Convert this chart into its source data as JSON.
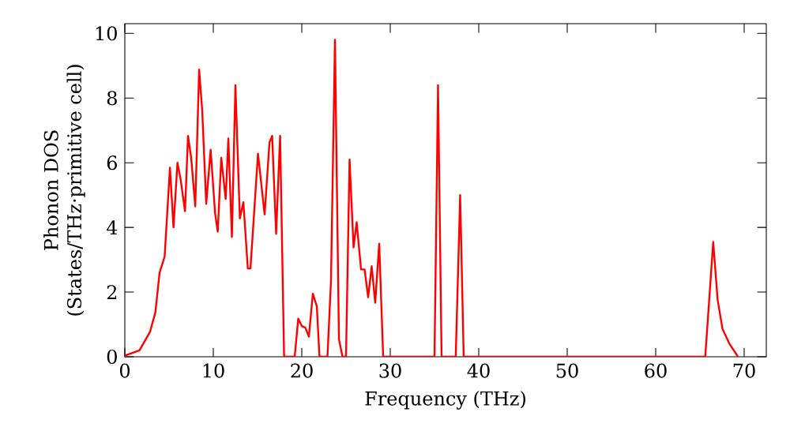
{
  "chart_data": {
    "type": "line",
    "xlabel": "Frequency (THz)",
    "ylabel": "Phonon DOS\n(States/THz·primitive cell)",
    "xlim": [
      0,
      72.5
    ],
    "ylim": [
      0,
      10.3
    ],
    "xticks": [
      0,
      10,
      20,
      30,
      40,
      50,
      60,
      70
    ],
    "yticks": [
      0,
      2,
      4,
      6,
      8,
      10
    ],
    "marker": "none",
    "line_style": "solid",
    "series": [
      {
        "color": "#ff0000",
        "x": [
          0,
          0.18,
          1.66,
          2.86,
          3.45,
          3.93,
          4.5,
          5.1,
          5.5,
          5.95,
          6.3,
          6.8,
          7.14,
          7.5,
          7.96,
          8.4,
          8.75,
          9.2,
          9.7,
          10.2,
          10.5,
          10.9,
          11.4,
          11.7,
          12.1,
          12.5,
          13.0,
          13.4,
          13.9,
          14.2,
          15.05,
          15.8,
          16.35,
          16.65,
          17.1,
          17.55,
          18.0,
          19.2,
          19.6,
          20.0,
          20.4,
          20.8,
          21.25,
          21.7,
          22.0,
          22.9,
          23.3,
          23.75,
          24.2,
          24.6,
          25.0,
          25.4,
          25.85,
          26.2,
          26.7,
          27.1,
          27.5,
          27.9,
          28.3,
          28.75,
          29.2,
          35.0,
          35.4,
          35.8,
          37.4,
          37.9,
          38.3,
          65.6,
          66.5,
          67.0,
          67.55,
          68.3,
          69.3
        ],
        "values": [
          0,
          0.05,
          0.2,
          0.78,
          1.37,
          2.6,
          3.1,
          5.85,
          4.0,
          6.0,
          5.5,
          4.5,
          6.83,
          6.15,
          4.65,
          8.88,
          7.6,
          4.73,
          6.4,
          4.44,
          3.87,
          6.15,
          4.88,
          6.75,
          3.7,
          8.4,
          4.28,
          4.78,
          2.73,
          2.73,
          6.28,
          4.4,
          6.63,
          6.83,
          3.8,
          6.83,
          0,
          0,
          1.18,
          0.95,
          0.9,
          0.62,
          1.95,
          1.56,
          0,
          0,
          2.33,
          9.8,
          0.54,
          0,
          0,
          6.1,
          3.38,
          4.16,
          2.7,
          2.7,
          1.84,
          2.8,
          1.67,
          3.5,
          0,
          0,
          8.4,
          0,
          0,
          5.0,
          0,
          0,
          3.55,
          1.76,
          0.86,
          0.42,
          0
        ]
      }
    ]
  }
}
